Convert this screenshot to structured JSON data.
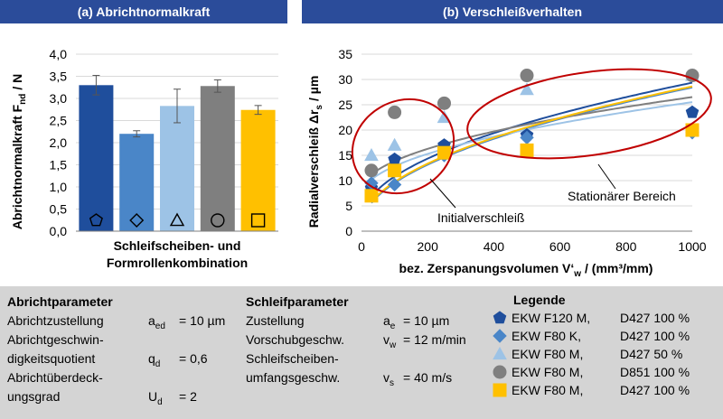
{
  "panels": {
    "a_title": "(a) Abrichtnormalkraft",
    "b_title": "(b) Verschleißverhalten"
  },
  "colors": {
    "header_bg": "#2b4c9a",
    "panel_bg": "#d4d4d4",
    "series": [
      "#1f4e9c",
      "#4a86c8",
      "#9dc3e6",
      "#7f7f7f",
      "#ffc000"
    ]
  },
  "chart_data": [
    {
      "type": "bar",
      "categories": [
        "",
        "",
        "",
        "",
        ""
      ],
      "values": [
        3.3,
        2.2,
        2.83,
        3.28,
        2.74
      ],
      "error": [
        0.22,
        0.07,
        0.38,
        0.14,
        0.1
      ],
      "colors": [
        "#1f4e9c",
        "#4a86c8",
        "#9dc3e6",
        "#7f7f7f",
        "#ffc000"
      ],
      "markers": [
        "pentagon",
        "diamond",
        "triangle",
        "circle",
        "square"
      ],
      "ylabel": "Abrichtnormalkraft F",
      "ylabel_sub": "nd",
      "ylabel_unit": "/ N",
      "xlabel_line1": "Schleifscheiben- und",
      "xlabel_line2": "Formrollenkombination",
      "ylim": [
        0,
        4
      ],
      "yticks": [
        "0,0",
        "0,5",
        "1,0",
        "1,5",
        "2,0",
        "2,5",
        "3,0",
        "3,5",
        "4,0"
      ],
      "grid": true
    },
    {
      "type": "scatter",
      "ylabel": "Radialverschleiß Δr",
      "ylabel_sub": "s",
      "ylabel_unit": "/ µm",
      "xlabel": "bez. Zerspanungsvolumen V‘",
      "xlabel_sub": "w",
      "xlabel_unit": "/ (mm³/mm)",
      "xlim": [
        0,
        1000
      ],
      "ylim": [
        0,
        35
      ],
      "xticks": [
        "0",
        "200",
        "400",
        "600",
        "800",
        "1000"
      ],
      "yticks": [
        "0",
        "5",
        "10",
        "15",
        "20",
        "25",
        "30",
        "35"
      ],
      "grid": true,
      "series": [
        {
          "marker": "pentagon",
          "color": "#1f4e9c",
          "x": [
            30,
            100,
            250,
            500,
            1000
          ],
          "y": [
            8.5,
            14.2,
            17.0,
            19.0,
            23.5
          ],
          "fit": [
            2.2,
            1.79
          ]
        },
        {
          "marker": "diamond",
          "color": "#4a86c8",
          "x": [
            30,
            100,
            250,
            500,
            1000
          ],
          "y": [
            9.5,
            9.2,
            15.0,
            18.5,
            19.5
          ],
          "fit": [
            0.8,
            1.82
          ]
        },
        {
          "marker": "triangle",
          "color": "#9dc3e6",
          "x": [
            30,
            100,
            250,
            500,
            1000
          ],
          "y": [
            15.0,
            17.0,
            22.5,
            28.0,
            30.8
          ],
          "fit": [
            7.0,
            1.22
          ]
        },
        {
          "marker": "circle",
          "color": "#7f7f7f",
          "x": [
            30,
            100,
            250,
            500,
            1000
          ],
          "y": [
            12.0,
            23.5,
            25.3,
            30.8,
            30.8
          ],
          "fit": [
            8.0,
            1.22
          ]
        },
        {
          "marker": "square",
          "color": "#ffc000",
          "x": [
            30,
            100,
            250,
            500,
            1000
          ],
          "y": [
            7.0,
            12.0,
            15.5,
            16.0,
            20.0
          ],
          "fit": [
            1.0,
            1.82
          ]
        }
      ],
      "annotations": {
        "stationary": "Stationärer Bereich",
        "initial": "Initialverschleiß"
      }
    }
  ],
  "params": {
    "abricht": {
      "title": "Abrichtparameter",
      "rows": [
        {
          "label": "Abrichtzustellung",
          "sym": "a",
          "sub": "ed",
          "val": "= 10 µm"
        },
        {
          "label": "Abrichtgeschwin-",
          "sym": "",
          "sub": "",
          "val": ""
        },
        {
          "label": "digkeitsquotient",
          "sym": "q",
          "sub": "d",
          "val": "= 0,6"
        },
        {
          "label": "Abrichtüberdeck-",
          "sym": "",
          "sub": "",
          "val": ""
        },
        {
          "label": "ungsgrad",
          "sym": "U",
          "sub": "d",
          "val": "= 2"
        }
      ]
    },
    "schleif": {
      "title": "Schleifparameter",
      "rows": [
        {
          "label": "Zustellung",
          "sym": "a",
          "sub": "e",
          "val": "= 10 µm"
        },
        {
          "label": "Vorschubgeschw.",
          "sym": "v",
          "sub": "w",
          "val": "= 12 m/min"
        },
        {
          "label": "Schleifscheiben-",
          "sym": "",
          "sub": "",
          "val": ""
        },
        {
          "label": "umfangsgeschw.",
          "sym": "v",
          "sub": "s",
          "val": "= 40 m/s"
        }
      ]
    },
    "legend": {
      "title": "Legende",
      "items": [
        {
          "marker": "pentagon",
          "color": "#1f4e9c",
          "name": "EKW F120 M,",
          "spec": "D427 100 %"
        },
        {
          "marker": "diamond",
          "color": "#4a86c8",
          "name": "EKW F80 K,",
          "spec": "D427 100 %"
        },
        {
          "marker": "triangle",
          "color": "#9dc3e6",
          "name": "EKW F80 M,",
          "spec": "D427 50 %"
        },
        {
          "marker": "circle",
          "color": "#7f7f7f",
          "name": "EKW F80 M,",
          "spec": "D851 100 %"
        },
        {
          "marker": "square",
          "color": "#ffc000",
          "name": "EKW F80 M,",
          "spec": "D427 100 %"
        }
      ]
    }
  }
}
